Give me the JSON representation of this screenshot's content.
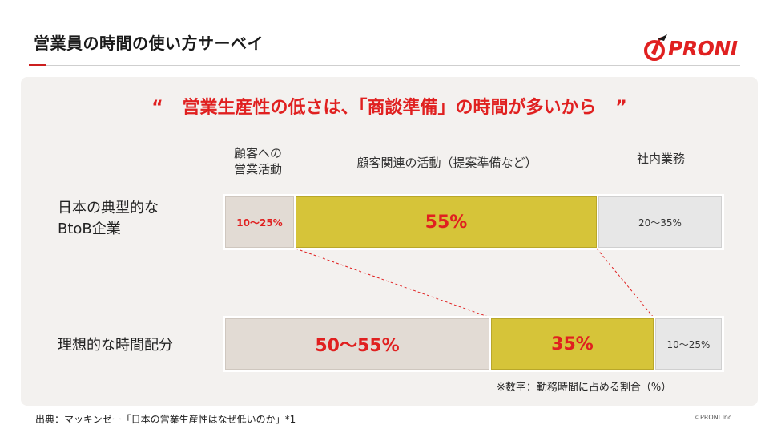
{
  "header": {
    "title": "営業員の時間の使い方サーベイ",
    "logo_text": "PRONI"
  },
  "headline": {
    "open_quote": "“",
    "text": "営業生産性の低さは、「商談準備」の時間が多いから",
    "close_quote": "”"
  },
  "columns": {
    "customer_sales": [
      "顧客への",
      "営業活動"
    ],
    "customer_related": "顧客関連の活動（提案準備など）",
    "internal": "社内業務"
  },
  "rows": {
    "typical": {
      "label": [
        "日本の典型的な",
        "BtoB企業"
      ],
      "segments": [
        "10〜25%",
        "55%",
        "20〜35%"
      ]
    },
    "ideal": {
      "label": "理想的な時間配分",
      "segments": [
        "50〜55%",
        "35%",
        "10〜25%"
      ]
    }
  },
  "note": "※数字：勤務時間に占める割合（%）",
  "source": "出典：マッキンゼー「日本の営業生産性はなぜ低いのか」*1",
  "copyright": "©PRONI Inc.",
  "colors": {
    "accent_red": "#e02020",
    "beige": "#e2dbd4",
    "mustard": "#d6c439",
    "gray": "#e7e7e7",
    "panel": "#f3f1ef"
  },
  "icons": {
    "logo_mark": "proni-check-mark-icon"
  }
}
